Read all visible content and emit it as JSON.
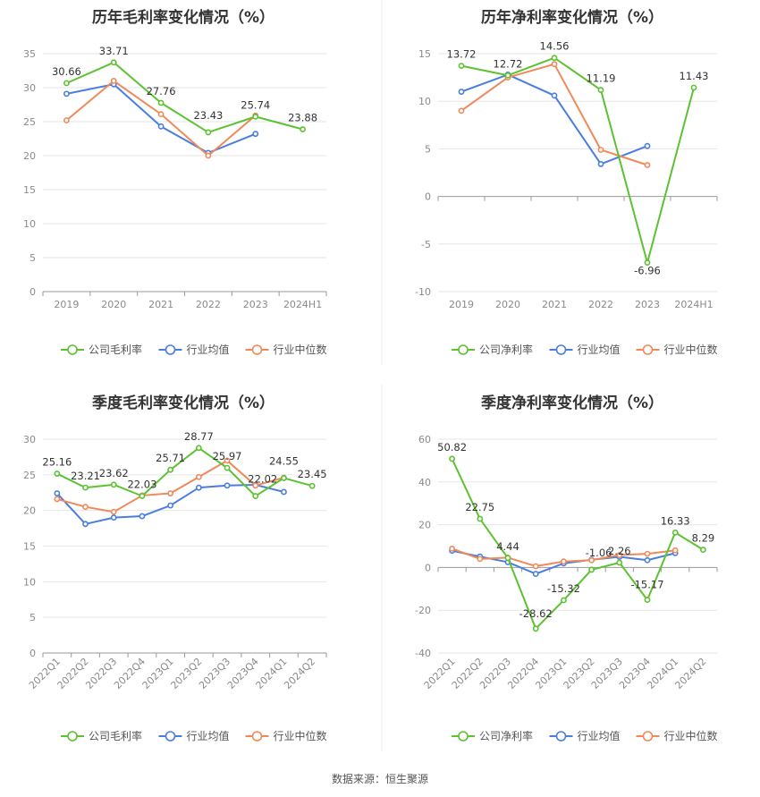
{
  "source_label": "数据来源：恒生聚源",
  "colors": {
    "company": "#5cc232",
    "avg": "#4a7de0",
    "median": "#f0895a"
  },
  "chart_data": [
    {
      "type": "line",
      "title": "历年毛利率变化情况（%）",
      "categories": [
        "2019",
        "2020",
        "2021",
        "2022",
        "2023",
        "2024H1"
      ],
      "yticks": [
        0,
        5,
        10,
        15,
        20,
        25,
        30,
        35
      ],
      "ylim": [
        0,
        35
      ],
      "grid": true,
      "legend_position": "bottom",
      "series": [
        {
          "name": "公司毛利率",
          "key": "company",
          "labeled": true,
          "values": [
            30.66,
            33.71,
            27.76,
            23.43,
            25.74,
            23.88
          ]
        },
        {
          "name": "行业均值",
          "key": "avg",
          "labeled": false,
          "values": [
            29.1,
            30.5,
            24.3,
            20.4,
            23.2,
            null
          ]
        },
        {
          "name": "行业中位数",
          "key": "median",
          "labeled": false,
          "values": [
            25.2,
            31.0,
            26.1,
            20.0,
            25.9,
            null
          ]
        }
      ]
    },
    {
      "type": "line",
      "title": "历年净利率变化情况（%）",
      "categories": [
        "2019",
        "2020",
        "2021",
        "2022",
        "2023",
        "2024H1"
      ],
      "yticks": [
        -10,
        -5,
        0,
        5,
        10,
        15
      ],
      "ylim": [
        -10,
        15
      ],
      "grid": true,
      "legend_position": "bottom",
      "series": [
        {
          "name": "公司净利率",
          "key": "company",
          "labeled": true,
          "values": [
            13.72,
            12.72,
            14.56,
            11.19,
            -6.96,
            11.43
          ]
        },
        {
          "name": "行业均值",
          "key": "avg",
          "labeled": false,
          "values": [
            11.0,
            12.8,
            10.6,
            3.4,
            5.3,
            null
          ]
        },
        {
          "name": "行业中位数",
          "key": "median",
          "labeled": false,
          "values": [
            9.0,
            12.5,
            13.9,
            4.9,
            3.3,
            null
          ]
        }
      ]
    },
    {
      "type": "line",
      "title": "季度毛利率变化情况（%）",
      "categories": [
        "2022Q1",
        "2022Q2",
        "2022Q3",
        "2022Q4",
        "2023Q1",
        "2023Q2",
        "2023Q3",
        "2023Q4",
        "2024Q1",
        "2024Q2"
      ],
      "yticks": [
        0,
        5,
        10,
        15,
        20,
        25,
        30
      ],
      "ylim": [
        0,
        30
      ],
      "grid": true,
      "legend_position": "bottom",
      "series": [
        {
          "name": "公司毛利率",
          "key": "company",
          "labeled": true,
          "values": [
            25.16,
            23.21,
            23.62,
            22.03,
            25.71,
            28.77,
            25.97,
            22.02,
            24.55,
            23.45
          ]
        },
        {
          "name": "行业均值",
          "key": "avg",
          "labeled": false,
          "values": [
            22.4,
            18.1,
            19.0,
            19.2,
            20.7,
            23.2,
            23.5,
            23.6,
            22.6,
            null
          ]
        },
        {
          "name": "行业中位数",
          "key": "median",
          "labeled": false,
          "values": [
            21.6,
            20.5,
            19.8,
            22.1,
            22.4,
            24.7,
            27.0,
            23.5,
            24.6,
            null
          ]
        }
      ]
    },
    {
      "type": "line",
      "title": "季度净利率变化情况（%）",
      "categories": [
        "2022Q1",
        "2022Q2",
        "2022Q3",
        "2022Q4",
        "2023Q1",
        "2023Q2",
        "2023Q3",
        "2023Q4",
        "2024Q1",
        "2024Q2"
      ],
      "yticks": [
        -40,
        -20,
        0,
        20,
        40,
        60
      ],
      "ylim": [
        -40,
        60
      ],
      "grid": true,
      "legend_position": "bottom",
      "series": [
        {
          "name": "公司净利率",
          "key": "company",
          "labeled": true,
          "values": [
            50.82,
            22.75,
            4.44,
            -28.62,
            -15.32,
            -1.06,
            2.26,
            -15.17,
            16.33,
            8.29
          ]
        },
        {
          "name": "行业均值",
          "key": "avg",
          "labeled": false,
          "values": [
            7.8,
            5.1,
            2.5,
            -3.0,
            1.9,
            3.6,
            5.0,
            3.4,
            6.7,
            null
          ]
        },
        {
          "name": "行业中位数",
          "key": "median",
          "labeled": false,
          "values": [
            8.8,
            4.0,
            4.6,
            0.6,
            2.8,
            3.4,
            5.8,
            6.4,
            8.0,
            null
          ]
        }
      ]
    }
  ]
}
